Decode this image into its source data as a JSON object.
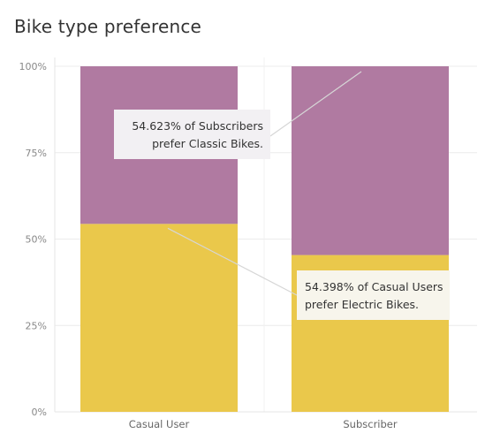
{
  "chart_data": {
    "type": "bar",
    "stacked": true,
    "title": "Bike type preference",
    "xlabel": "",
    "ylabel": "",
    "categories": [
      "Casual User",
      "Subscriber"
    ],
    "series": [
      {
        "name": "Electric Bikes",
        "color": "#EAC84B",
        "values": [
          54.398,
          45.377
        ]
      },
      {
        "name": "Classic Bikes",
        "color": "#B07AA1",
        "values": [
          45.602,
          54.623
        ]
      }
    ],
    "ylim": [
      0,
      100
    ],
    "yticks": [
      0,
      25,
      50,
      75,
      100
    ],
    "ytick_labels": [
      "0%",
      "25%",
      "50%",
      "75%",
      "100%"
    ],
    "grid": true,
    "annotations": [
      {
        "lines": [
          "54.623% of Subscribers",
          "prefer Classic Bikes."
        ],
        "category": "Subscriber",
        "value": 100,
        "box_bg": "#F2F0F3"
      },
      {
        "lines": [
          "54.398% of Casual Users",
          "prefer Electric Bikes."
        ],
        "category": "Casual User",
        "value": 54.398,
        "box_bg": "#F7F5EC"
      }
    ]
  }
}
